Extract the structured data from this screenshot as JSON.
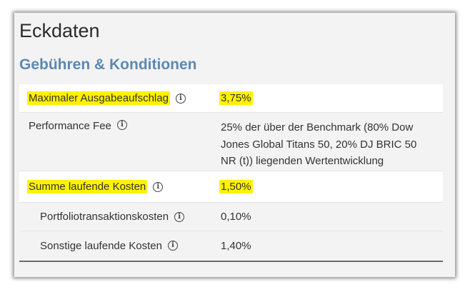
{
  "title": "Eckdaten",
  "subtitle": "Gebühren & Konditionen",
  "info_glyph": "i",
  "rows": [
    {
      "label": "Maximaler Ausgabeaufschlag",
      "value": "3,75%",
      "highlighted": true
    },
    {
      "label": "Performance Fee",
      "value": "25% der über der Benchmark (80% Dow Jones Global Titans 50, 20% DJ BRIC 50 NR (t)) liegenden Wertentwicklung",
      "highlighted": false
    },
    {
      "label": "Summe laufende Kosten",
      "value": "1,50%",
      "highlighted": true
    },
    {
      "label": "Portfoliotransaktionskosten",
      "value": "0,10%",
      "highlighted": false
    },
    {
      "label": "Sonstige laufende Kosten",
      "value": "1,40%",
      "highlighted": false
    }
  ],
  "colors": {
    "highlight": "#fff200",
    "subtitle": "#5d88b2"
  }
}
